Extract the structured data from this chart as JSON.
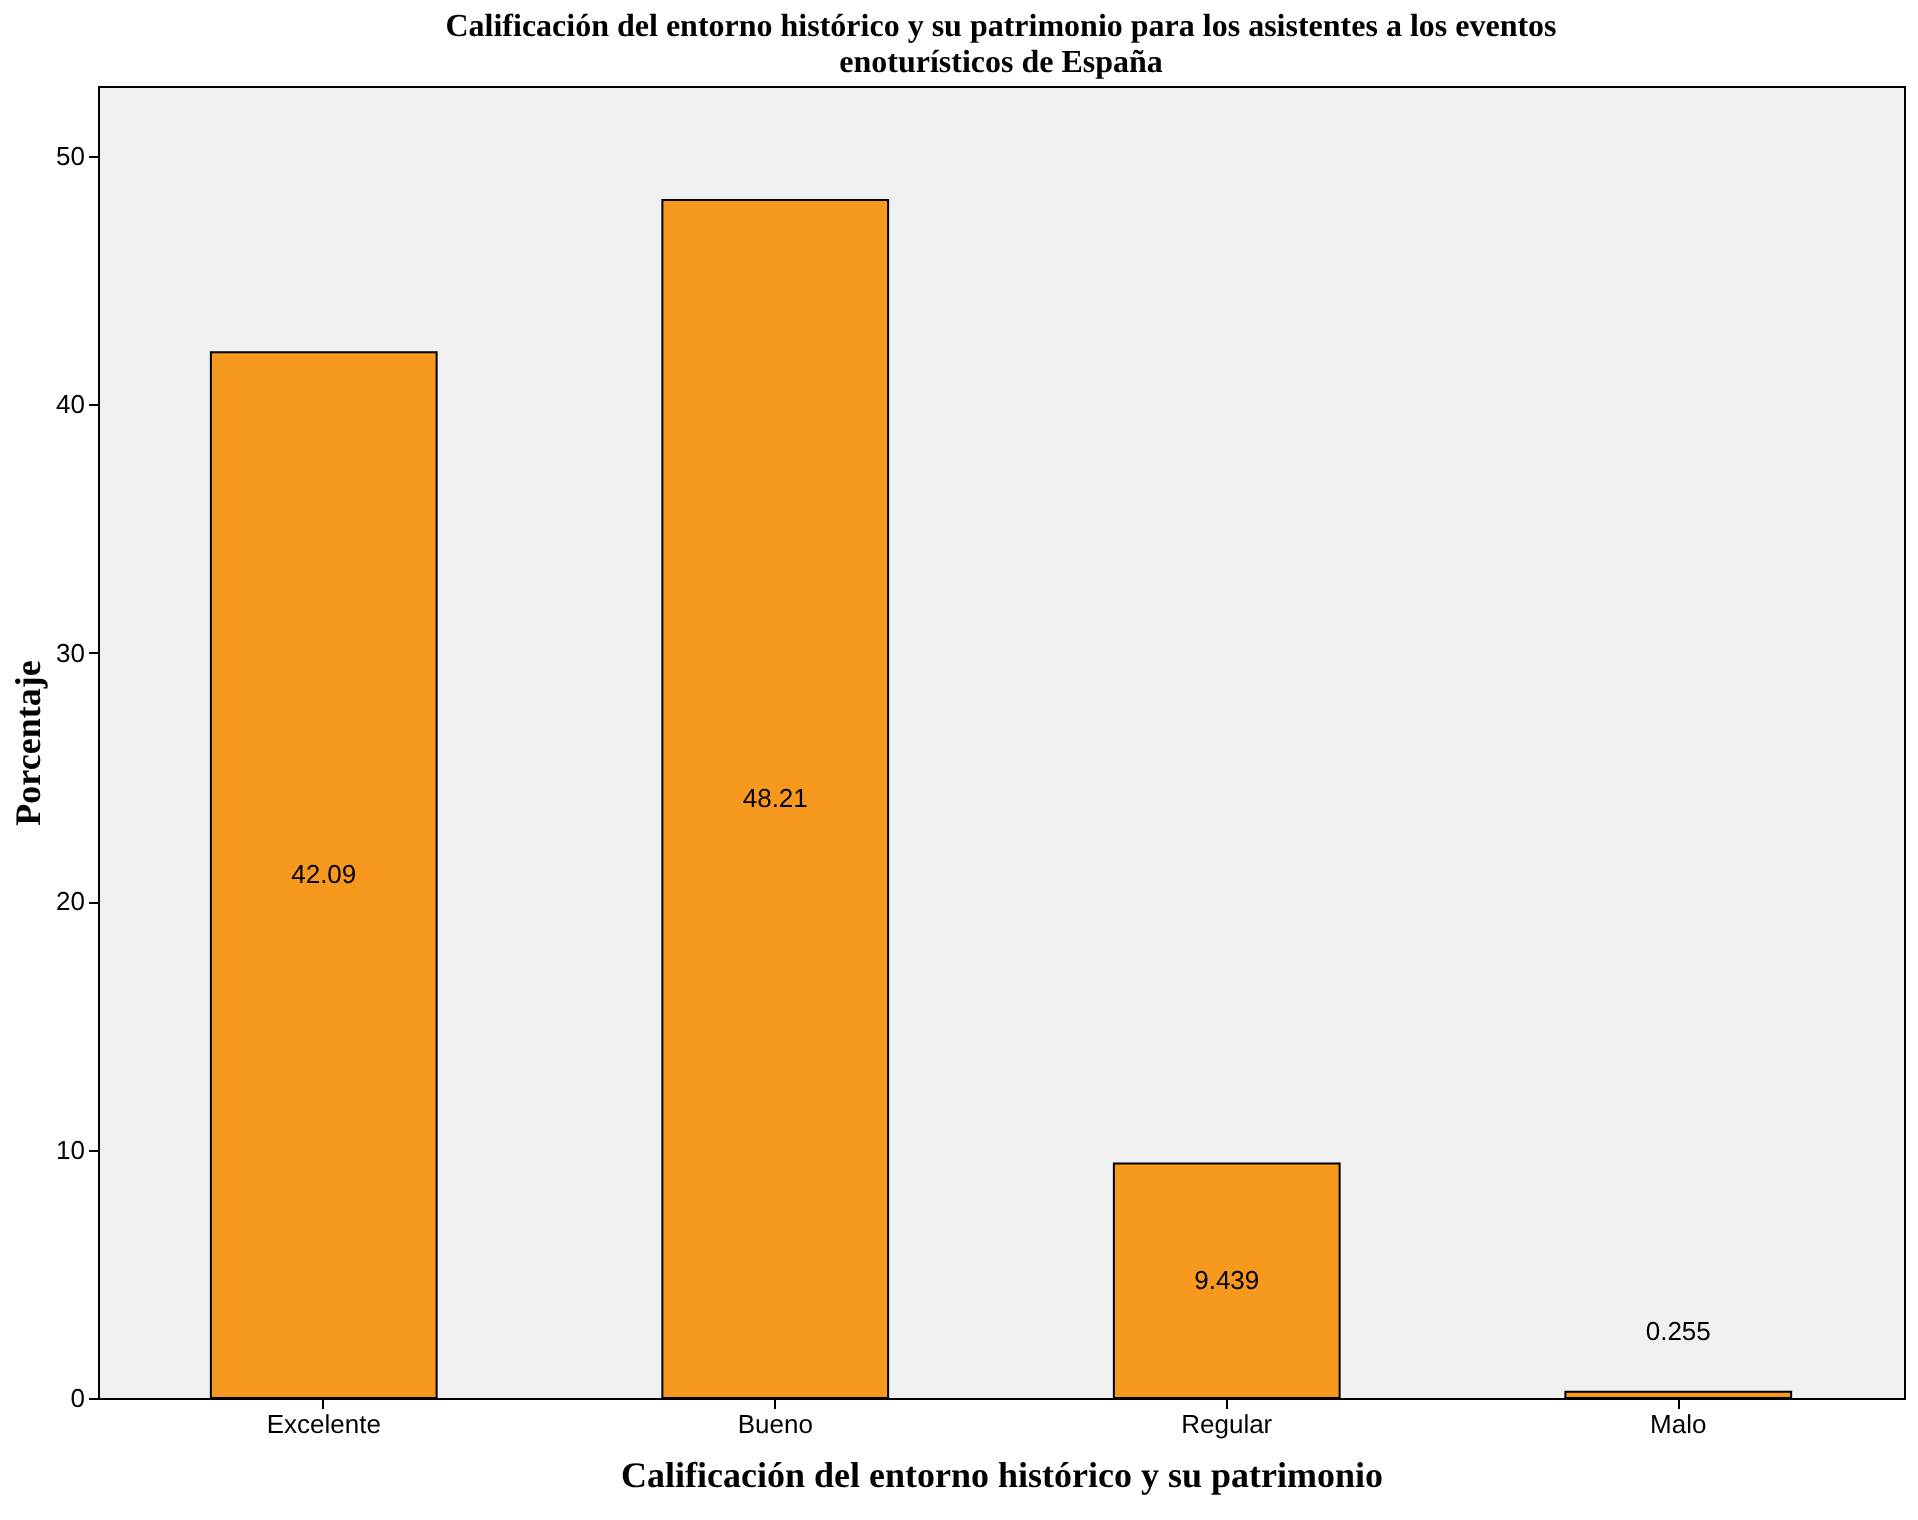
{
  "chart_data": {
    "type": "bar",
    "title": [
      "Calificación del entorno histórico y su patrimonio para los asistentes a los eventos",
      "enoturísticos de España"
    ],
    "xlabel": "Calificación del entorno histórico y su patrimonio",
    "ylabel": "Porcentaje",
    "categories": [
      "Excelente",
      "Bueno",
      "Regular",
      "Malo"
    ],
    "values": [
      42.09,
      48.21,
      9.439,
      0.255
    ],
    "value_labels": [
      "42.09",
      "48.21",
      "9.439",
      "0.255"
    ],
    "color": "#f7991f",
    "ylim": [
      0,
      52.8
    ],
    "yticks": [
      0,
      10,
      20,
      30,
      40,
      50
    ],
    "grid": false
  }
}
